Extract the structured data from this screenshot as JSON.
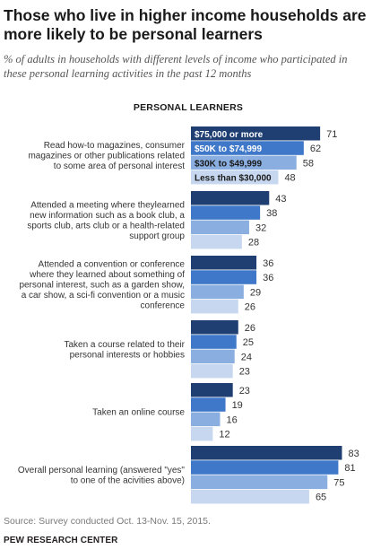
{
  "title": "Those who live in higher income households are more likely to be personal learners",
  "subtitle": "% of adults in households with different levels of income who participated in these personal learning activities in the past 12 months",
  "source": "Source: Survey conducted Oct. 13-Nov. 15, 2015.",
  "credit": "PEW RESEARCH CENTER",
  "colors": {
    "series": [
      "#1f3f73",
      "#3f78c8",
      "#8aaee0",
      "#c7d7ef"
    ],
    "legend_text": [
      "#ffffff",
      "#ffffff",
      "#1a1a1a",
      "#1a1a1a"
    ]
  },
  "chart_data": {
    "type": "bar",
    "orientation": "horizontal",
    "title": "PERSONAL LEARNERS",
    "xlim": [
      0,
      90
    ],
    "grid": false,
    "legend": "inside first group bars",
    "categories": [
      "Read how-to magazines, consumer magazines or other publications related to some area of personal interest",
      "Attended a meeting where theylearned new information such as a book club, a sports club, arts club or a health-related support group",
      "Attended a convention or conference where they learned about something of personal interest, such as a garden show, a car show, a sci-fi convention or a music conference",
      "Taken a course related to their personal interests or hobbies",
      "Taken an online course",
      "Overall personal learning (answered \"yes\" to one of the acivities above)"
    ],
    "series": [
      {
        "name": "$75,000  or more",
        "values": [
          71,
          43,
          36,
          26,
          23,
          83
        ]
      },
      {
        "name": "$50K  to $74,999",
        "values": [
          62,
          38,
          36,
          25,
          19,
          81
        ]
      },
      {
        "name": "$30K  to $49,999",
        "values": [
          58,
          32,
          29,
          24,
          16,
          75
        ]
      },
      {
        "name": "Less than $30,000",
        "values": [
          48,
          28,
          26,
          23,
          12,
          65
        ]
      }
    ]
  }
}
